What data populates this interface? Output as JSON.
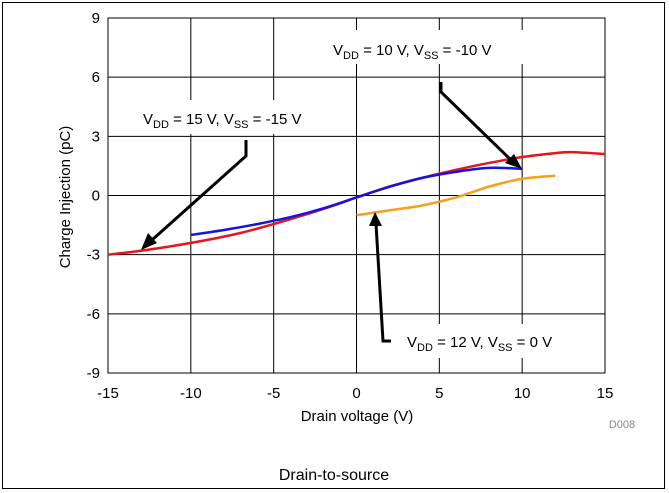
{
  "chart_data": {
    "type": "line",
    "title": "",
    "xlabel": "Drain voltage (V)",
    "ylabel": "Charge Injection (pC)",
    "xlim": [
      -15,
      15
    ],
    "ylim": [
      -9,
      9
    ],
    "x_ticks": [
      -15,
      -10,
      -5,
      0,
      5,
      10,
      15
    ],
    "y_ticks": [
      -9,
      -6,
      -3,
      0,
      3,
      6,
      9
    ],
    "x_tick_labels": [
      "-15",
      "-10",
      "-5",
      "0",
      "5",
      "10",
      "15"
    ],
    "y_tick_labels": [
      "-9",
      "-6",
      "-3",
      "0",
      "3",
      "6",
      "9"
    ],
    "grid": true,
    "series": [
      {
        "color": "#e8141c",
        "x": [
          -15,
          -13,
          -11,
          -9,
          -7,
          -5,
          -3,
          -1,
          0,
          2,
          4,
          6,
          8,
          10,
          12,
          13,
          15
        ],
        "y": [
          -3.0,
          -2.8,
          -2.55,
          -2.25,
          -1.9,
          -1.45,
          -0.95,
          -0.4,
          -0.1,
          0.45,
          0.9,
          1.3,
          1.65,
          1.95,
          2.15,
          2.2,
          2.1
        ]
      },
      {
        "color": "#1414dc",
        "x": [
          -10,
          -8,
          -6,
          -4,
          -2,
          0,
          2,
          4,
          6,
          8,
          10
        ],
        "y": [
          -2.0,
          -1.75,
          -1.45,
          -1.1,
          -0.65,
          -0.1,
          0.45,
          0.9,
          1.2,
          1.4,
          1.35
        ]
      },
      {
        "color": "#f5a01e",
        "x": [
          0,
          2,
          4,
          6,
          8,
          10,
          12
        ],
        "y": [
          -1.0,
          -0.75,
          -0.5,
          -0.1,
          0.45,
          0.85,
          1.0
        ]
      }
    ],
    "annotations": [
      {
        "id": "a1",
        "text_main": "V",
        "sub1": "DD",
        "mid": " = 10 V, V",
        "sub2": "SS",
        "end": " = -10 V"
      },
      {
        "id": "a2",
        "text_main": "V",
        "sub1": "DD",
        "mid": " = 15 V, V",
        "sub2": "SS",
        "end": " = -15 V"
      },
      {
        "id": "a3",
        "text_main": "V",
        "sub1": "DD",
        "mid": " = 12 V, V",
        "sub2": "SS",
        "end": " = 0 V"
      }
    ],
    "figure_id": "D008",
    "caption": "Drain-to-source"
  }
}
